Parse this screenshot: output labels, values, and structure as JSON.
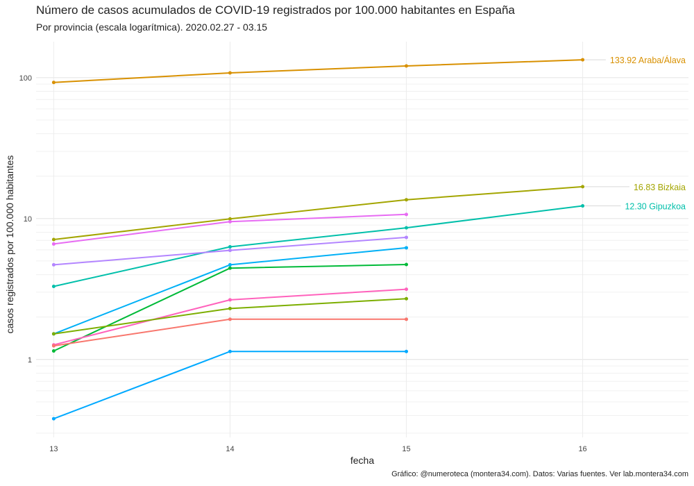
{
  "chart_data": {
    "type": "line",
    "title": "Número de casos acumulados de COVID-19 registrados por 100.000 habitantes en España",
    "subtitle": "Por provincia (escala logarítmica). 2020.02.27 - 03.15",
    "xlabel": "fecha",
    "ylabel": "casos registrados por 100.000 habitantes",
    "caption": "Gráfico: @numeroteca (montera34.com). Datos: Varias fuentes. Ver lab.montera34.com",
    "x_ticks": [
      "13",
      "14",
      "15",
      "16"
    ],
    "y_ticks": [
      "1",
      "10",
      "100"
    ],
    "y_scale": "log",
    "xlim": [
      12.9,
      16.6
    ],
    "ylim": [
      0.28,
      180
    ],
    "grid": true,
    "legend": "none",
    "series": [
      {
        "color": "#D89000",
        "x": [
          13,
          14,
          15,
          16
        ],
        "y": [
          92.5,
          108,
          121,
          133.92
        ],
        "end_label": "133.92 Araba/Álava"
      },
      {
        "color": "#A3A500",
        "x": [
          13,
          14,
          15,
          16
        ],
        "y": [
          7.1,
          9.95,
          13.6,
          16.83
        ],
        "end_label": "16.83 Bizkaia"
      },
      {
        "color": "#00BFAA",
        "x": [
          13,
          14,
          15,
          16
        ],
        "y": [
          3.3,
          6.3,
          8.6,
          12.3
        ],
        "end_label": "12.30 Gipuzkoa"
      },
      {
        "color": "#E76BF3",
        "x": [
          13,
          14,
          15
        ],
        "y": [
          6.6,
          9.5,
          10.7
        ]
      },
      {
        "color": "#B385FF",
        "x": [
          13,
          14,
          15
        ],
        "y": [
          4.7,
          5.95,
          7.35
        ]
      },
      {
        "color": "#00B0F6",
        "x": [
          13,
          14,
          15
        ],
        "y": [
          1.52,
          4.7,
          6.2
        ]
      },
      {
        "color": "#00BA38",
        "x": [
          13,
          14,
          15
        ],
        "y": [
          1.15,
          4.45,
          4.72
        ]
      },
      {
        "color": "#FF62BC",
        "x": [
          13,
          14,
          15
        ],
        "y": [
          1.27,
          2.65,
          3.15
        ]
      },
      {
        "color": "#7CAE00",
        "x": [
          13,
          14,
          15
        ],
        "y": [
          1.52,
          2.3,
          2.7
        ]
      },
      {
        "color": "#F8766D",
        "x": [
          13,
          14,
          15
        ],
        "y": [
          1.25,
          1.93,
          1.93
        ]
      },
      {
        "color": "#00A9FF",
        "x": [
          13,
          14,
          15
        ],
        "y": [
          0.38,
          1.14,
          1.14
        ]
      }
    ]
  }
}
